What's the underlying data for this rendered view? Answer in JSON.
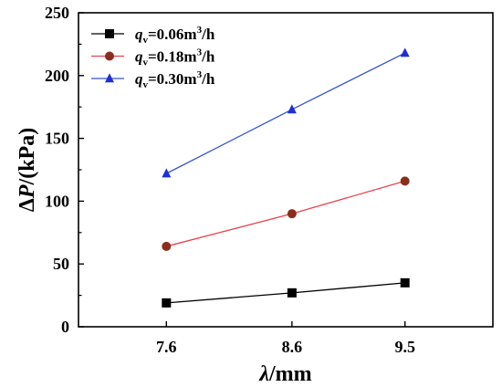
{
  "chart_data": {
    "type": "line",
    "title": "",
    "x": [
      7.6,
      8.6,
      9.5
    ],
    "x_tick_labels": [
      "7.6",
      "8.6",
      "9.5"
    ],
    "xlim": [
      6.9,
      10.2
    ],
    "ylim": [
      0,
      250
    ],
    "y_ticks": [
      0,
      50,
      100,
      150,
      200,
      250
    ],
    "xlabel": {
      "symbol": "λ",
      "unit": "/mm"
    },
    "ylabel": {
      "delta": "Δ",
      "symbol": "P",
      "unit": "/(kPa)"
    },
    "grid": false,
    "legend_position": "top-left",
    "series": [
      {
        "name": "qv=0.06m3/h",
        "legend": {
          "q": "q",
          "sub": "v",
          "value": "=0.06m",
          "sup": "3",
          "tail": "/h"
        },
        "marker": "square",
        "line_color": "#000000",
        "marker_color": "#000000",
        "values": [
          19,
          27,
          35
        ]
      },
      {
        "name": "qv=0.18m3/h",
        "legend": {
          "q": "q",
          "sub": "v",
          "value": "=0.18m",
          "sup": "3",
          "tail": "/h"
        },
        "marker": "circle",
        "line_color": "#e8434d",
        "marker_color": "#8b2d1e",
        "values": [
          64,
          90,
          116
        ]
      },
      {
        "name": "qv=0.30m3/h",
        "legend": {
          "q": "q",
          "sub": "v",
          "value": "=0.30m",
          "sup": "3",
          "tail": "/h"
        },
        "marker": "triangle",
        "line_color": "#3355cc",
        "marker_color": "#1f2fd6",
        "values": [
          122,
          173,
          218
        ]
      }
    ]
  }
}
